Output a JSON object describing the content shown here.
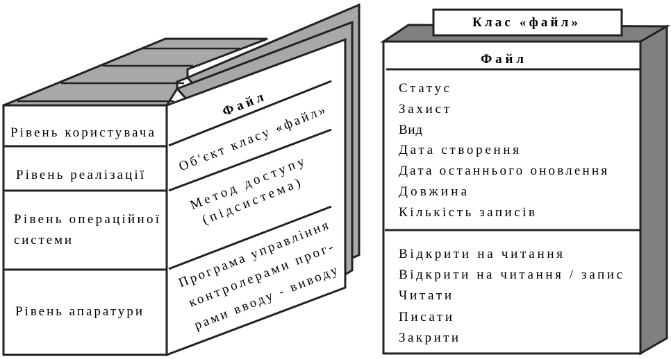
{
  "left_diagram": {
    "levels": [
      [
        "Рівень користувача"
      ],
      [
        "Рівень реалізації"
      ],
      [
        "Рівень операційної",
        "системи"
      ],
      [
        "Рівень апаратури"
      ]
    ],
    "page_title": "Файл",
    "page_items": [
      [
        "Об'єкт класу «файл»"
      ],
      [
        "Метод доступу",
        "(підсистема)"
      ],
      [
        "Програма управління",
        "контролерами прог-",
        "рами вводу - виводу"
      ]
    ]
  },
  "right_diagram": {
    "tab_label": "Клас «файл»",
    "class_name": "Файл",
    "attributes": [
      "Статус",
      "Захист",
      "Вид",
      "Дата створення",
      "Дата останнього оновлення",
      "Довжина",
      "Кількість записів"
    ],
    "methods": [
      "Відкрити на читання",
      "Відкрити на читання / запис",
      "Читати",
      "Писати",
      "Закрити"
    ]
  },
  "colors": {
    "shade": "#a8a8a8",
    "dark_shade": "#808080",
    "line": "#222222"
  }
}
